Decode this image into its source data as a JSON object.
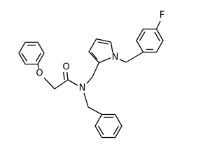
{
  "atom_labels": [
    "F",
    "N",
    "O",
    "O",
    "N"
  ]
}
